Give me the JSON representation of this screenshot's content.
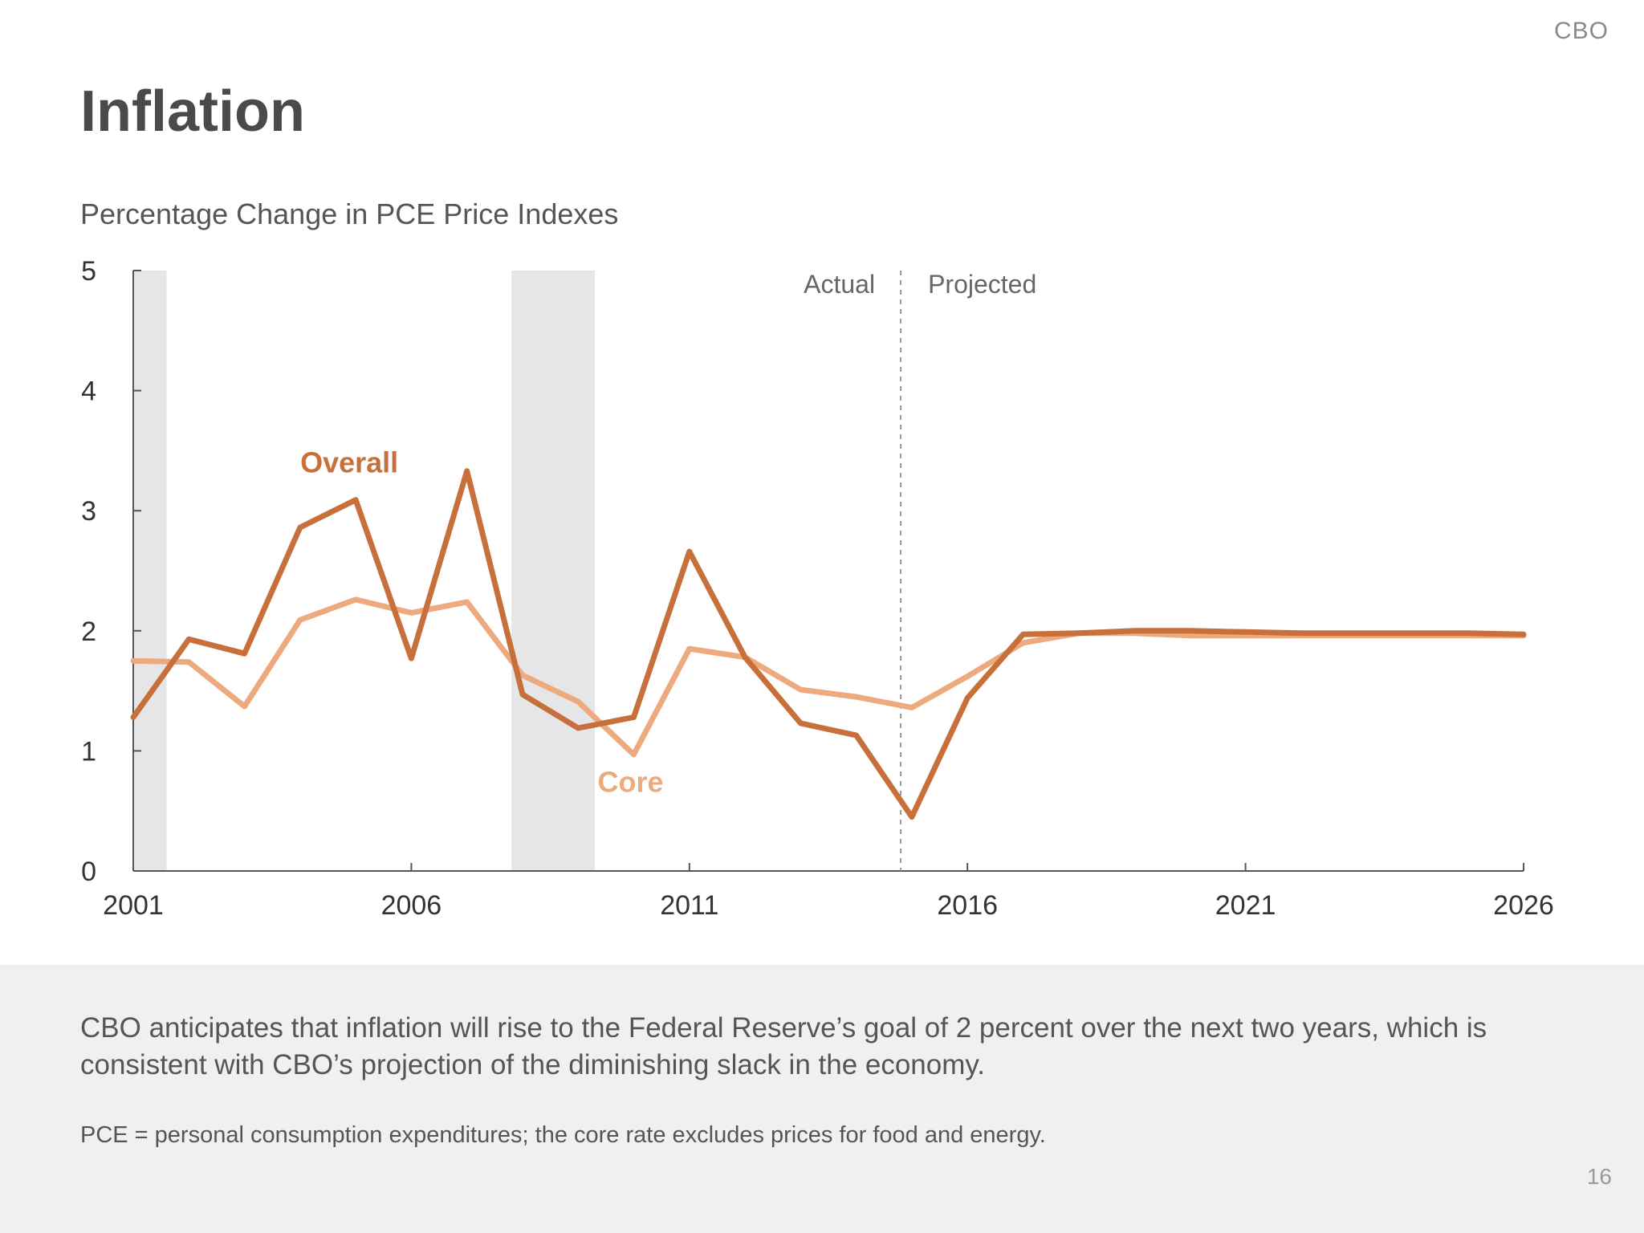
{
  "brand": "CBO",
  "title": "Inflation",
  "subtitle": "Percentage Change in PCE Price Indexes",
  "summary": "CBO anticipates that inflation will rise to the Federal Reserve’s goal of 2 percent over the next two years, which is consistent with CBO’s projection of the diminishing slack in the economy.",
  "note": "PCE = personal consumption expenditures; the core rate excludes prices for food and energy.",
  "page_number": "16",
  "colors": {
    "overall": "#c8703b",
    "core": "#eeaa7f",
    "recession": "#e6e5e8",
    "axis": "#555555",
    "divider": "#999999"
  },
  "chart_data": {
    "type": "line",
    "title": "Percentage Change in PCE Price Indexes",
    "xlim": [
      2001,
      2026
    ],
    "ylim": [
      0,
      5
    ],
    "x_ticks": [
      2001,
      2006,
      2011,
      2016,
      2021,
      2026
    ],
    "y_ticks": [
      0,
      1,
      2,
      3,
      4,
      5
    ],
    "grid": false,
    "recessions": [
      [
        2001.0,
        2001.6
      ],
      [
        2007.8,
        2009.3
      ]
    ],
    "divider_x": 2014.8,
    "divider_labels": {
      "left": "Actual",
      "right": "Projected"
    },
    "x": [
      2001,
      2002,
      2003,
      2004,
      2005,
      2006,
      2007,
      2008,
      2009,
      2010,
      2011,
      2012,
      2013,
      2014,
      2015,
      2016,
      2017,
      2018,
      2019,
      2020,
      2021,
      2022,
      2023,
      2024,
      2025,
      2026
    ],
    "series": [
      {
        "name": "Core",
        "values": [
          1.75,
          1.74,
          1.37,
          2.09,
          2.26,
          2.15,
          2.24,
          1.63,
          1.41,
          0.97,
          1.85,
          1.78,
          1.51,
          1.45,
          1.36,
          1.62,
          1.9,
          1.98,
          1.98,
          1.96,
          1.96,
          1.96,
          1.96,
          1.96,
          1.96,
          1.96
        ]
      },
      {
        "name": "Overall",
        "values": [
          1.28,
          1.93,
          1.81,
          2.86,
          3.09,
          1.77,
          3.33,
          1.47,
          1.19,
          1.28,
          2.66,
          1.78,
          1.23,
          1.13,
          0.45,
          1.44,
          1.97,
          1.98,
          2.0,
          2.0,
          1.99,
          1.98,
          1.98,
          1.98,
          1.98,
          1.97
        ]
      }
    ]
  }
}
